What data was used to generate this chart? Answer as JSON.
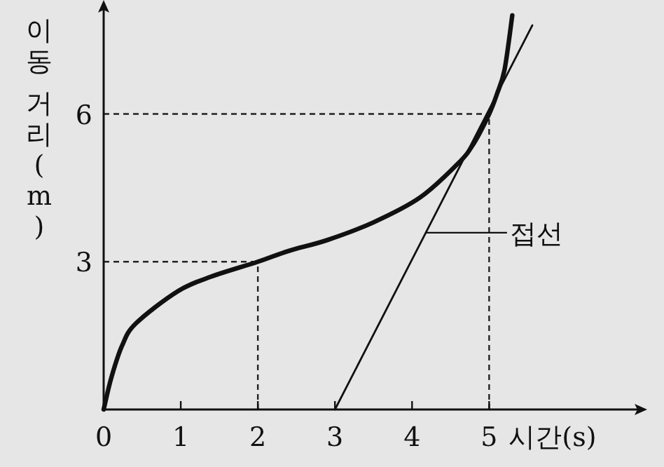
{
  "chart_data": {
    "type": "line",
    "xlabel": "시간(s)",
    "ylabel": "이동 거리(m)",
    "xlim": [
      0,
      7.05
    ],
    "ylim": [
      0,
      8.2
    ],
    "xticks": [
      0,
      1,
      2,
      3,
      4,
      5
    ],
    "yticks": [
      3,
      6
    ],
    "marker": "none",
    "line_style": "solid",
    "series": [
      {
        "color": "#111111",
        "x": [
          0,
          0.1,
          0.24,
          0.42,
          0.96,
          1.4,
          2,
          2.4,
          2.9,
          3.5,
          4.1,
          4.6,
          4.8,
          5,
          5.1,
          5.2,
          5.3
        ],
        "values": [
          0,
          0.65,
          1.3,
          1.75,
          2.4,
          2.7,
          3,
          3.22,
          3.44,
          3.8,
          4.3,
          5.0,
          5.4,
          6,
          6.4,
          6.9,
          8.0
        ]
      },
      {
        "color": "#111111",
        "x": [
          3,
          5.56
        ],
        "values": [
          0,
          7.8
        ]
      }
    ],
    "ref_lines": [
      {
        "axis": "y",
        "value": 6,
        "line_style": "dashed"
      },
      {
        "axis": "x",
        "value": 5,
        "line_style": "dashed"
      },
      {
        "axis": "y",
        "value": 3,
        "line_style": "dashed"
      },
      {
        "axis": "x",
        "value": 2,
        "line_style": "dashed"
      }
    ],
    "annotations": [
      "접선"
    ]
  }
}
